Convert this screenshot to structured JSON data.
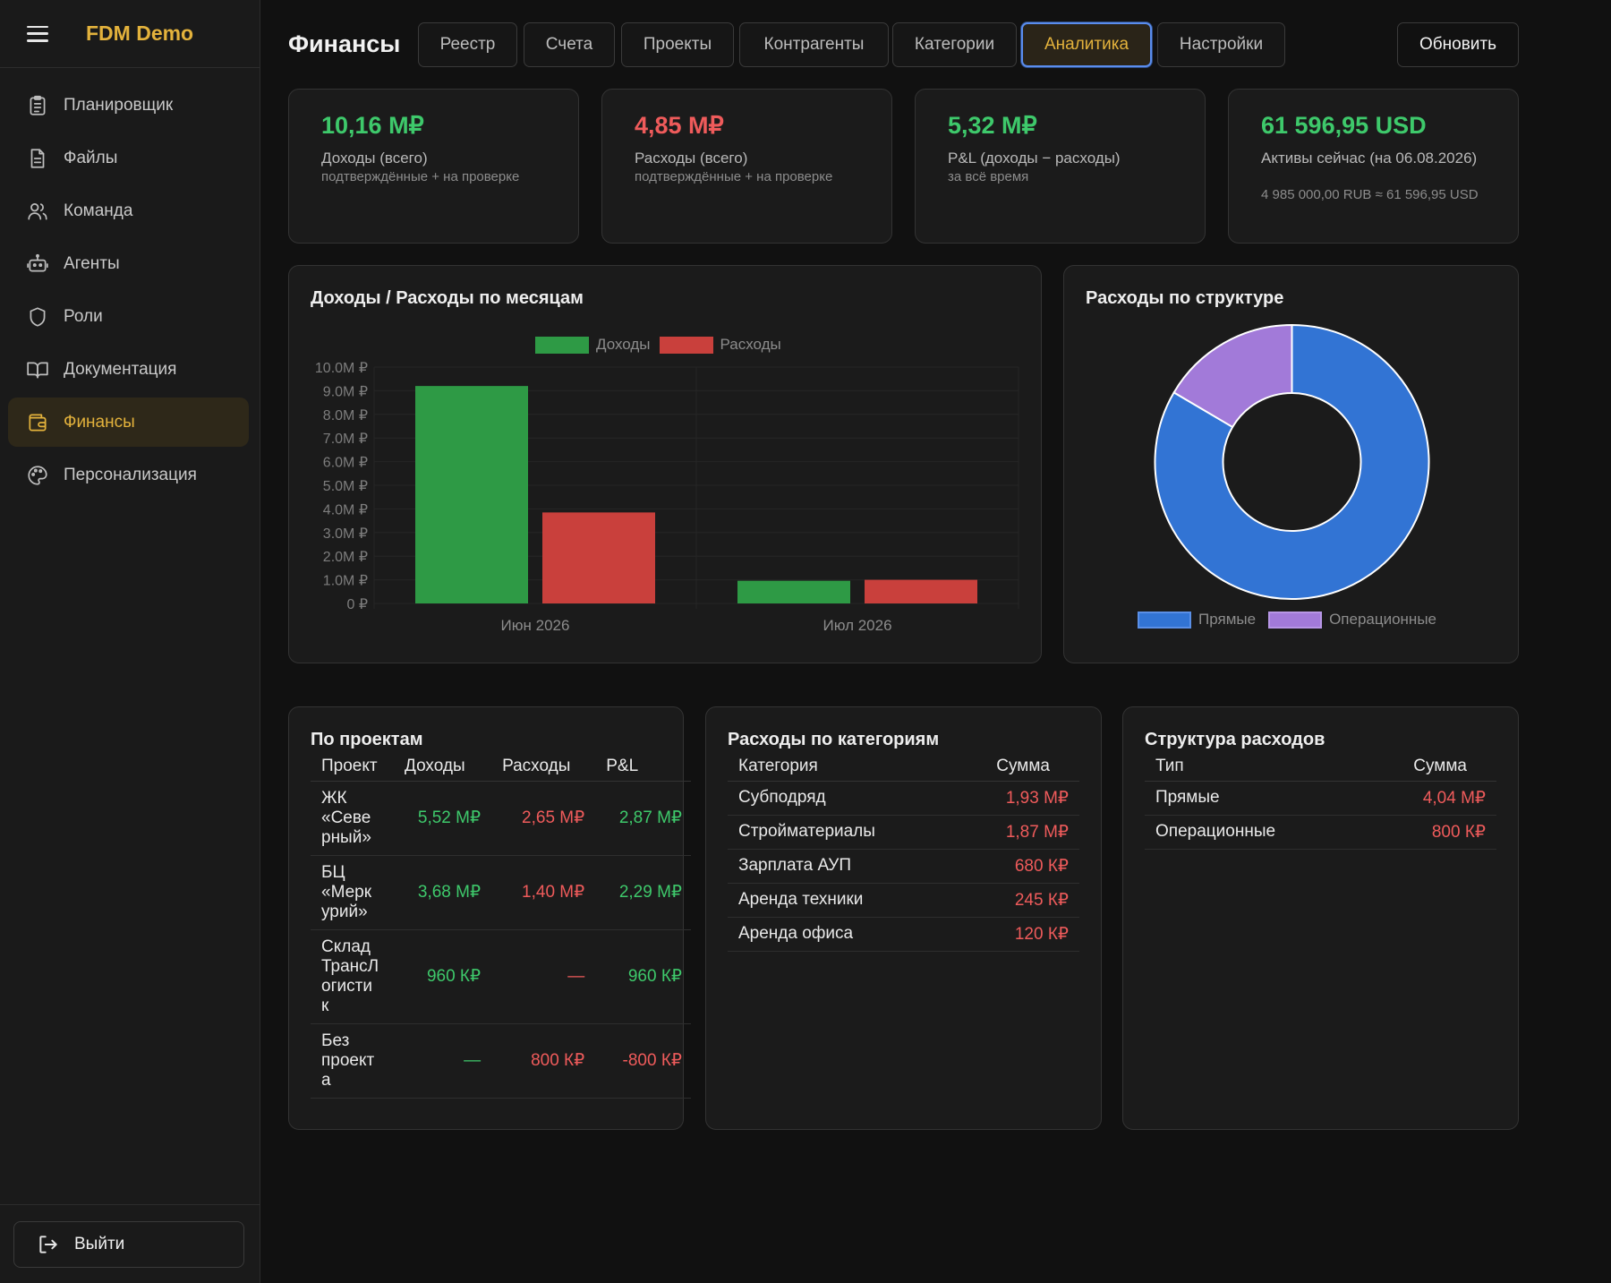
{
  "app": {
    "brand": "FDM Demo"
  },
  "sidebar": {
    "items": [
      {
        "label": "Планировщик",
        "icon": "clipboard-icon"
      },
      {
        "label": "Файлы",
        "icon": "file-icon"
      },
      {
        "label": "Команда",
        "icon": "users-icon"
      },
      {
        "label": "Агенты",
        "icon": "bot-icon"
      },
      {
        "label": "Роли",
        "icon": "shield-icon"
      },
      {
        "label": "Документация",
        "icon": "book-icon"
      },
      {
        "label": "Финансы",
        "icon": "wallet-icon",
        "active": true
      },
      {
        "label": "Персонализация",
        "icon": "palette-icon"
      }
    ],
    "logout_label": "Выйти"
  },
  "header": {
    "title": "Финансы",
    "tabs": [
      "Реестр",
      "Счета",
      "Проекты",
      "Контрагенты",
      "Категории",
      "Аналитика",
      "Настройки"
    ],
    "active_tab": "Аналитика",
    "refresh_label": "Обновить"
  },
  "kpis": [
    {
      "value": "10,16 М₽",
      "label": "Доходы (всего)",
      "sub": "подтверждённые + на проверке",
      "color": "#3ec96b"
    },
    {
      "value": "4,85 М₽",
      "label": "Расходы (всего)",
      "sub": "подтверждённые + на проверке",
      "color": "#ef5b5b"
    },
    {
      "value": "5,32 М₽",
      "label": "P&L (доходы − расходы)",
      "sub": "за всё время",
      "color": "#3ec96b"
    },
    {
      "value": "61 596,95 USD",
      "label": "Активы сейчас (на 06.08.2026)",
      "sub": "4 985 000,00 RUB ≈ 61 596,95 USD",
      "color": "#3ec96b"
    }
  ],
  "chart_data": [
    {
      "type": "bar",
      "title": "Доходы / Расходы по месяцам",
      "categories": [
        "Июн 2026",
        "Июл 2026"
      ],
      "series": [
        {
          "name": "Доходы",
          "values": [
            9.2,
            0.96
          ],
          "color": "#2e9a45"
        },
        {
          "name": "Расходы",
          "values": [
            3.85,
            1.0
          ],
          "color": "#c9403c"
        }
      ],
      "ylim": [
        0,
        10
      ],
      "yticks": [
        0,
        1,
        2,
        3,
        4,
        5,
        6,
        7,
        8,
        9,
        10
      ],
      "ytick_labels": [
        "0 ₽",
        "1.0M ₽",
        "2.0M ₽",
        "3.0M ₽",
        "4.0M ₽",
        "5.0M ₽",
        "6.0M ₽",
        "7.0M ₽",
        "8.0M ₽",
        "9.0M ₽",
        "10.0M ₽"
      ],
      "legend": "top-center",
      "grid": true
    },
    {
      "type": "pie",
      "title": "Расходы по структуре",
      "donut": true,
      "labels": [
        "Прямые",
        "Операционные"
      ],
      "values": [
        4.04,
        0.8
      ],
      "colors": [
        "#3274d4",
        "#a27ad9"
      ],
      "legend": "bottom"
    }
  ],
  "projects": {
    "title": "По проектам",
    "columns": [
      "Проект",
      "Доходы",
      "Расходы",
      "P&L"
    ],
    "rows": [
      {
        "name": [
          "ЖК",
          "«Севе",
          "рный»"
        ],
        "income": "5,52 М₽",
        "expense": "2,65 М₽",
        "pl": "2,87 М₽",
        "pl_color": "#3ec96b"
      },
      {
        "name": [
          "БЦ",
          "«Мерк",
          "урий»"
        ],
        "income": "3,68 М₽",
        "expense": "1,40 М₽",
        "pl": "2,29 М₽",
        "pl_color": "#3ec96b"
      },
      {
        "name": [
          "Склад",
          "ТрансЛ",
          "огисти",
          "к"
        ],
        "income": "960 К₽",
        "expense": "—",
        "pl": "960 К₽",
        "pl_color": "#3ec96b"
      },
      {
        "name": [
          "Без",
          "проект",
          "а"
        ],
        "income": "—",
        "expense": "800 К₽",
        "pl": "-800 К₽",
        "pl_color": "#ef5b5b"
      }
    ]
  },
  "categories": {
    "title": "Расходы по категориям",
    "columns": [
      "Категория",
      "Сумма"
    ],
    "rows": [
      {
        "name": "Субподряд",
        "amount": "1,93 М₽"
      },
      {
        "name": "Стройматериалы",
        "amount": "1,87 М₽"
      },
      {
        "name": "Зарплата АУП",
        "amount": "680 К₽"
      },
      {
        "name": "Аренда техники",
        "amount": "245 К₽"
      },
      {
        "name": "Аренда офиса",
        "amount": "120 К₽"
      }
    ]
  },
  "structure": {
    "title": "Структура расходов",
    "columns": [
      "Тип",
      "Сумма"
    ],
    "rows": [
      {
        "name": "Прямые",
        "amount": "4,04 М₽"
      },
      {
        "name": "Операционные",
        "amount": "800 К₽"
      }
    ]
  },
  "colors": {
    "accent": "#e3b23c",
    "positive": "#3ec96b",
    "negative": "#ef5b5b",
    "active_tab_border": "#5a8dee"
  }
}
